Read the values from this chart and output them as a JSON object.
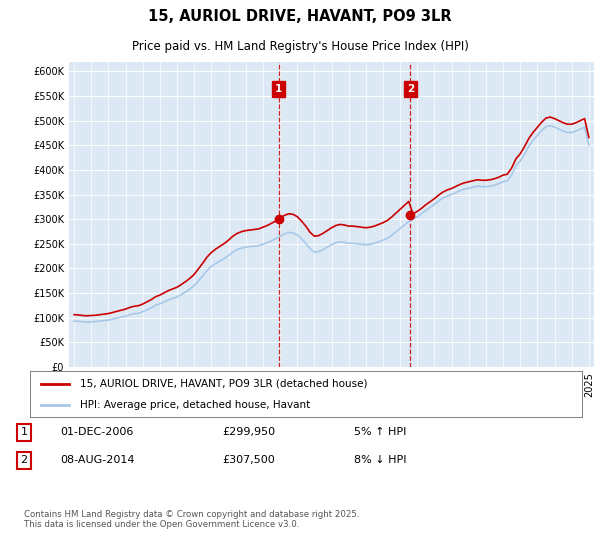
{
  "title": "15, AURIOL DRIVE, HAVANT, PO9 3LR",
  "subtitle": "Price paid vs. HM Land Registry's House Price Index (HPI)",
  "plot_bg_color": "#dce9f5",
  "ylim": [
    0,
    620000
  ],
  "yticks": [
    0,
    50000,
    100000,
    150000,
    200000,
    250000,
    300000,
    350000,
    400000,
    450000,
    500000,
    550000,
    600000
  ],
  "ytick_labels": [
    "£0",
    "£50K",
    "£100K",
    "£150K",
    "£200K",
    "£250K",
    "£300K",
    "£350K",
    "£400K",
    "£450K",
    "£500K",
    "£550K",
    "£600K"
  ],
  "hpi_color": "#a8c8e8",
  "sale_color": "#cc0000",
  "vline_color": "#cc0000",
  "sale1_year": 2006.92,
  "sale1_price": 299950,
  "sale2_year": 2014.6,
  "sale2_price": 307500,
  "sale1_date": "01-DEC-2006",
  "sale2_date": "08-AUG-2014",
  "sale1_pct": "5% ↑ HPI",
  "sale2_pct": "8% ↓ HPI",
  "legend_line1": "15, AURIOL DRIVE, HAVANT, PO9 3LR (detached house)",
  "legend_line2": "HPI: Average price, detached house, Havant",
  "footer": "Contains HM Land Registry data © Crown copyright and database right 2025.\nThis data is licensed under the Open Government Licence v3.0.",
  "xstart": 1995,
  "xend": 2025,
  "hpi_data": [
    [
      1995.0,
      93000
    ],
    [
      1995.25,
      92500
    ],
    [
      1995.5,
      91500
    ],
    [
      1995.75,
      91000
    ],
    [
      1996.0,
      91500
    ],
    [
      1996.25,
      92000
    ],
    [
      1996.5,
      93000
    ],
    [
      1996.75,
      94000
    ],
    [
      1997.0,
      95000
    ],
    [
      1997.25,
      97000
    ],
    [
      1997.5,
      99000
    ],
    [
      1997.75,
      101000
    ],
    [
      1998.0,
      103000
    ],
    [
      1998.25,
      106000
    ],
    [
      1998.5,
      108000
    ],
    [
      1998.75,
      109000
    ],
    [
      1999.0,
      112000
    ],
    [
      1999.25,
      116000
    ],
    [
      1999.5,
      120000
    ],
    [
      1999.75,
      125000
    ],
    [
      2000.0,
      128000
    ],
    [
      2000.25,
      132000
    ],
    [
      2000.5,
      136000
    ],
    [
      2000.75,
      139000
    ],
    [
      2001.0,
      142000
    ],
    [
      2001.25,
      147000
    ],
    [
      2001.5,
      152000
    ],
    [
      2001.75,
      158000
    ],
    [
      2002.0,
      165000
    ],
    [
      2002.25,
      175000
    ],
    [
      2002.5,
      185000
    ],
    [
      2002.75,
      196000
    ],
    [
      2003.0,
      204000
    ],
    [
      2003.25,
      210000
    ],
    [
      2003.5,
      215000
    ],
    [
      2003.75,
      220000
    ],
    [
      2004.0,
      226000
    ],
    [
      2004.25,
      233000
    ],
    [
      2004.5,
      238000
    ],
    [
      2004.75,
      241000
    ],
    [
      2005.0,
      243000
    ],
    [
      2005.25,
      244000
    ],
    [
      2005.5,
      245000
    ],
    [
      2005.75,
      246000
    ],
    [
      2006.0,
      249000
    ],
    [
      2006.25,
      252000
    ],
    [
      2006.5,
      256000
    ],
    [
      2006.75,
      260000
    ],
    [
      2007.0,
      265000
    ],
    [
      2007.25,
      270000
    ],
    [
      2007.5,
      273000
    ],
    [
      2007.75,
      272000
    ],
    [
      2008.0,
      268000
    ],
    [
      2008.25,
      260000
    ],
    [
      2008.5,
      251000
    ],
    [
      2008.75,
      240000
    ],
    [
      2009.0,
      233000
    ],
    [
      2009.25,
      234000
    ],
    [
      2009.5,
      238000
    ],
    [
      2009.75,
      243000
    ],
    [
      2010.0,
      248000
    ],
    [
      2010.25,
      252000
    ],
    [
      2010.5,
      254000
    ],
    [
      2010.75,
      253000
    ],
    [
      2011.0,
      251000
    ],
    [
      2011.25,
      251000
    ],
    [
      2011.5,
      250000
    ],
    [
      2011.75,
      249000
    ],
    [
      2012.0,
      248000
    ],
    [
      2012.25,
      249000
    ],
    [
      2012.5,
      251000
    ],
    [
      2012.75,
      254000
    ],
    [
      2013.0,
      257000
    ],
    [
      2013.25,
      261000
    ],
    [
      2013.5,
      267000
    ],
    [
      2013.75,
      274000
    ],
    [
      2014.0,
      281000
    ],
    [
      2014.25,
      288000
    ],
    [
      2014.5,
      295000
    ],
    [
      2014.75,
      300000
    ],
    [
      2015.0,
      305000
    ],
    [
      2015.25,
      311000
    ],
    [
      2015.5,
      318000
    ],
    [
      2015.75,
      324000
    ],
    [
      2016.0,
      330000
    ],
    [
      2016.25,
      337000
    ],
    [
      2016.5,
      343000
    ],
    [
      2016.75,
      347000
    ],
    [
      2017.0,
      350000
    ],
    [
      2017.25,
      354000
    ],
    [
      2017.5,
      358000
    ],
    [
      2017.75,
      361000
    ],
    [
      2018.0,
      363000
    ],
    [
      2018.25,
      365000
    ],
    [
      2018.5,
      367000
    ],
    [
      2018.75,
      366000
    ],
    [
      2019.0,
      366000
    ],
    [
      2019.25,
      367000
    ],
    [
      2019.5,
      369000
    ],
    [
      2019.75,
      372000
    ],
    [
      2020.0,
      376000
    ],
    [
      2020.25,
      378000
    ],
    [
      2020.5,
      390000
    ],
    [
      2020.75,
      408000
    ],
    [
      2021.0,
      418000
    ],
    [
      2021.25,
      432000
    ],
    [
      2021.5,
      448000
    ],
    [
      2021.75,
      460000
    ],
    [
      2022.0,
      470000
    ],
    [
      2022.25,
      480000
    ],
    [
      2022.5,
      488000
    ],
    [
      2022.75,
      490000
    ],
    [
      2023.0,
      487000
    ],
    [
      2023.25,
      483000
    ],
    [
      2023.5,
      479000
    ],
    [
      2023.75,
      476000
    ],
    [
      2024.0,
      476000
    ],
    [
      2024.25,
      479000
    ],
    [
      2024.5,
      483000
    ],
    [
      2024.75,
      487000
    ],
    [
      2025.0,
      450000
    ]
  ]
}
